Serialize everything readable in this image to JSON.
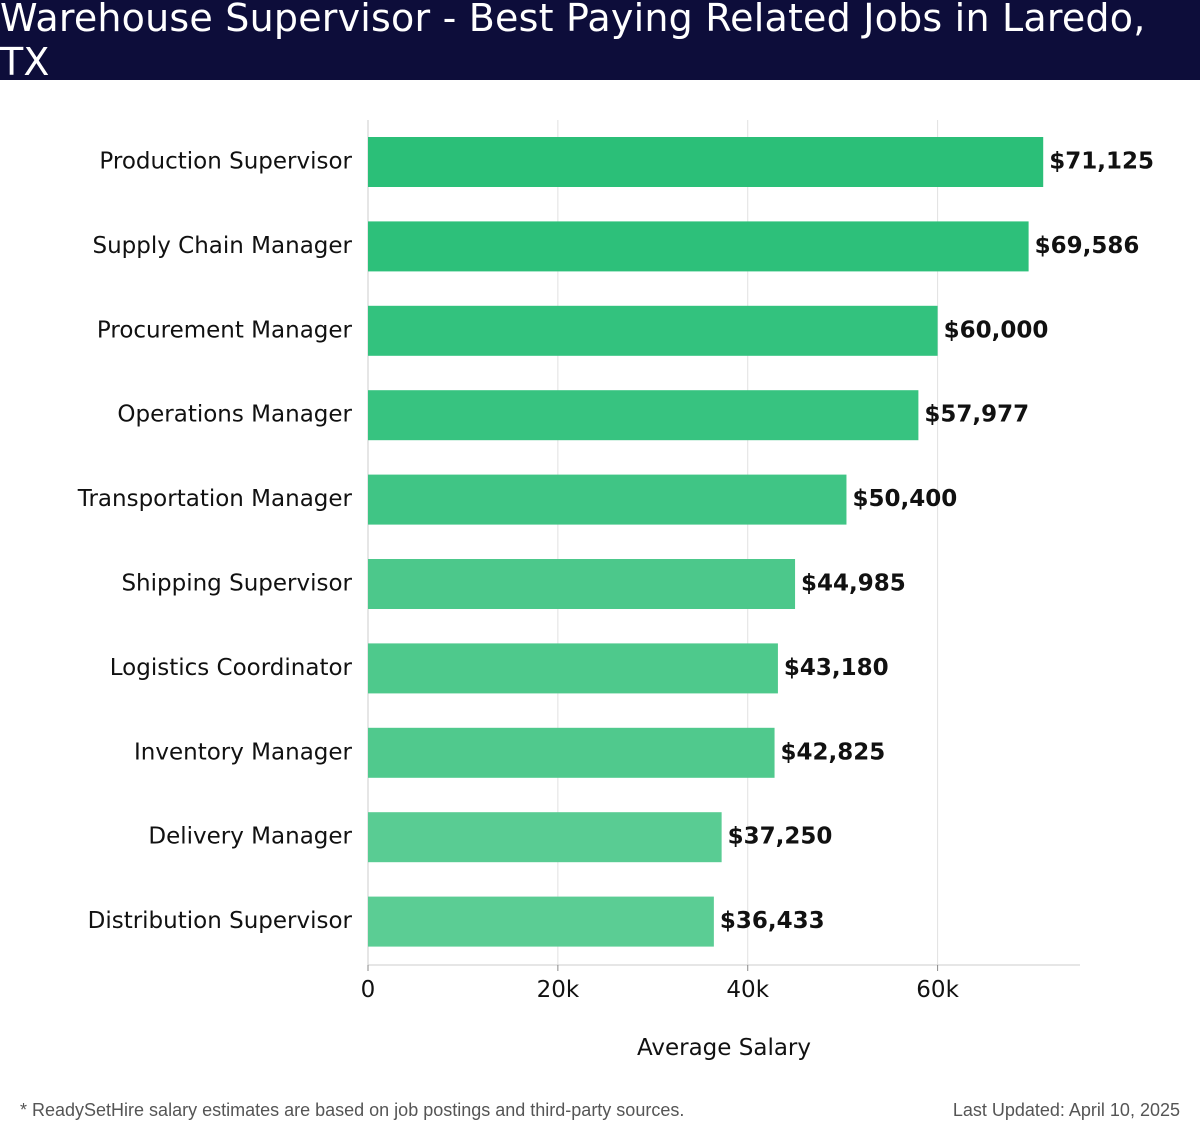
{
  "header": {
    "title": "Warehouse Supervisor - Best Paying Related Jobs in Laredo, TX"
  },
  "chart_data": {
    "type": "bar",
    "orientation": "horizontal",
    "title": "Warehouse Supervisor - Best Paying Related Jobs in Laredo, TX",
    "xlabel": "Average Salary",
    "ylabel": "",
    "xlim": [
      0,
      75000
    ],
    "xticks": [
      0,
      20000,
      40000,
      60000
    ],
    "xtick_labels": [
      "0",
      "20k",
      "40k",
      "60k"
    ],
    "grid": "vertical",
    "categories": [
      "Production Supervisor",
      "Supply Chain Manager",
      "Procurement Manager",
      "Operations Manager",
      "Transportation Manager",
      "Shipping Supervisor",
      "Logistics Coordinator",
      "Inventory Manager",
      "Delivery Manager",
      "Distribution Supervisor"
    ],
    "values": [
      71125,
      69586,
      60000,
      57977,
      50400,
      44985,
      43180,
      42825,
      37250,
      36433
    ],
    "value_labels": [
      "$71,125",
      "$69,586",
      "$60,000",
      "$57,977",
      "$50,400",
      "$44,985",
      "$43,180",
      "$42,825",
      "$37,250",
      "$36,433"
    ],
    "bar_colors": [
      "#2bbf78",
      "#2dc07a",
      "#33c27e",
      "#37c380",
      "#40c585",
      "#4cc88b",
      "#4ec98c",
      "#50c98d",
      "#59cc93",
      "#5bcd94"
    ]
  },
  "footer": {
    "note": "* ReadySetHire salary estimates are based on job postings and third-party sources.",
    "updated": "Last Updated: April 10, 2025"
  }
}
